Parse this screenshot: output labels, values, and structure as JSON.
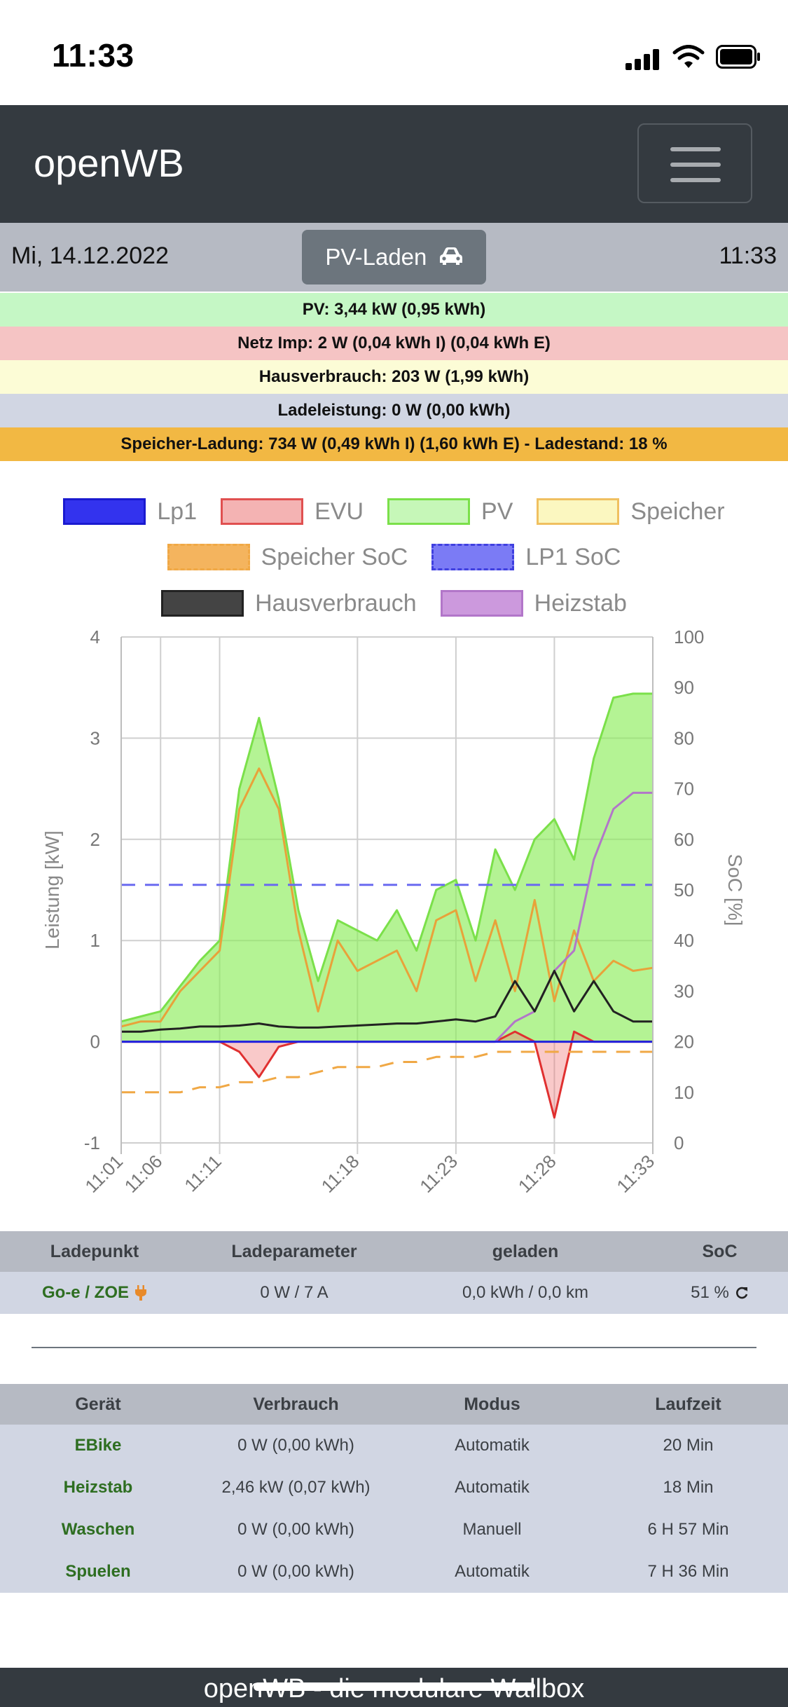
{
  "status_bar": {
    "time": "11:33"
  },
  "navbar": {
    "brand": "openWB"
  },
  "datebar": {
    "date": "Mi, 14.12.2022",
    "mode": "PV-Laden",
    "time": "11:33"
  },
  "info": {
    "pv": "PV: 3,44 kW (0,95 kWh)",
    "netz": "Netz Imp: 2 W (0,04 kWh I) (0,04 kWh E)",
    "haus": "Hausverbrauch: 203 W (1,99 kWh)",
    "lade": "Ladeleistung: 0 W (0,00 kWh)",
    "speicher": "Speicher-Ladung: 734 W (0,49 kWh I) (1,60 kWh E) - Ladestand: 18 %"
  },
  "colors": {
    "pv_row": "#c5f7c5",
    "netz_row": "#f5c4c4",
    "haus_row": "#fcfcd6",
    "lade_row": "#d1d6e3",
    "speicher_row": "#f2b843",
    "lp1": "#0000ff",
    "evu": "#e03030",
    "pv": "#7be04a",
    "speicher": "#e8a23a",
    "haus": "#222222",
    "heizstab": "#b276c9"
  },
  "legend": [
    {
      "label": "Lp1",
      "fill": "#3333ee",
      "border": "#1a1ad0",
      "dashed": false
    },
    {
      "label": "EVU",
      "fill": "#f4b3b3",
      "border": "#e05050",
      "dashed": false
    },
    {
      "label": "PV",
      "fill": "#c6f7b8",
      "border": "#7be04a",
      "dashed": false
    },
    {
      "label": "Speicher",
      "fill": "#fbf7c0",
      "border": "#f0c060",
      "dashed": false
    },
    {
      "label": "Speicher SoC",
      "fill": "#f4b45e",
      "border": "#f0a845",
      "dashed": true
    },
    {
      "label": "LP1 SoC",
      "fill": "#7b7bf5",
      "border": "#4040e0",
      "dashed": true
    },
    {
      "label": "Hausverbrauch",
      "fill": "#444444",
      "border": "#222222",
      "dashed": false
    },
    {
      "label": "Heizstab",
      "fill": "#cc99dd",
      "border": "#b276c9",
      "dashed": false
    }
  ],
  "chart_data": {
    "type": "area",
    "x": [
      "11:01",
      "11:03",
      "11:06",
      "11:08",
      "11:10",
      "11:11",
      "11:12",
      "11:13",
      "11:14",
      "11:15",
      "11:16",
      "11:17",
      "11:18",
      "11:19",
      "11:20",
      "11:21",
      "11:22",
      "11:23",
      "11:24",
      "11:25",
      "11:26",
      "11:27",
      "11:28",
      "11:29",
      "11:30",
      "11:31",
      "11:32",
      "11:33"
    ],
    "x_ticks": [
      "11:01",
      "11:06",
      "11:11",
      "11:18",
      "11:23",
      "11:28",
      "11:33"
    ],
    "ylabel": "Leistung [kW]",
    "y2label": "SoC [%]",
    "ylim": [
      -1,
      4
    ],
    "y_ticks": [
      "-1",
      "0",
      "1",
      "2",
      "3",
      "4"
    ],
    "y2lim": [
      0,
      100
    ],
    "y2_ticks": [
      "0",
      "10",
      "20",
      "30",
      "40",
      "50",
      "60",
      "70",
      "80",
      "90",
      "100"
    ],
    "grid": true,
    "legend_position": "top",
    "series": [
      {
        "name": "PV",
        "axis": "left",
        "values": [
          0.2,
          0.25,
          0.3,
          0.55,
          0.8,
          1.0,
          2.5,
          3.2,
          2.4,
          1.3,
          0.6,
          1.2,
          1.1,
          1.0,
          1.3,
          0.9,
          1.5,
          1.6,
          1.0,
          1.9,
          1.5,
          2.0,
          2.2,
          1.8,
          2.8,
          3.4,
          3.44,
          3.44
        ]
      },
      {
        "name": "Speicher",
        "axis": "left",
        "values": [
          0.15,
          0.2,
          0.2,
          0.5,
          0.7,
          0.9,
          2.3,
          2.7,
          2.3,
          1.1,
          0.3,
          1.0,
          0.7,
          0.8,
          0.9,
          0.5,
          1.2,
          1.3,
          0.6,
          1.2,
          0.5,
          1.4,
          0.4,
          1.1,
          0.6,
          0.8,
          0.7,
          0.73
        ]
      },
      {
        "name": "Hausverbrauch",
        "axis": "left",
        "values": [
          0.1,
          0.1,
          0.12,
          0.13,
          0.15,
          0.15,
          0.16,
          0.18,
          0.15,
          0.14,
          0.14,
          0.15,
          0.16,
          0.17,
          0.18,
          0.18,
          0.2,
          0.22,
          0.2,
          0.25,
          0.6,
          0.3,
          0.7,
          0.3,
          0.6,
          0.3,
          0.2,
          0.2
        ]
      },
      {
        "name": "EVU",
        "axis": "left",
        "values": [
          0,
          0,
          0,
          0,
          0,
          0,
          -0.1,
          -0.35,
          -0.05,
          0,
          0,
          0,
          0,
          0,
          0,
          0,
          0,
          0,
          0,
          0,
          0.1,
          0,
          -0.75,
          0.1,
          0,
          0,
          0,
          0
        ]
      },
      {
        "name": "Lp1",
        "axis": "left",
        "values": [
          0,
          0,
          0,
          0,
          0,
          0,
          0,
          0,
          0,
          0,
          0,
          0,
          0,
          0,
          0,
          0,
          0,
          0,
          0,
          0,
          0,
          0,
          0,
          0,
          0,
          0,
          0,
          0
        ]
      },
      {
        "name": "Heizstab",
        "axis": "left",
        "values": [
          0,
          0,
          0,
          0,
          0,
          0,
          0,
          0,
          0,
          0,
          0,
          0,
          0,
          0,
          0,
          0,
          0,
          0,
          0,
          0,
          0.2,
          0.3,
          0.7,
          0.9,
          1.8,
          2.3,
          2.46,
          2.46
        ]
      },
      {
        "name": "Speicher SoC",
        "axis": "right",
        "values": [
          10,
          10,
          10,
          10,
          11,
          11,
          12,
          12,
          13,
          13,
          14,
          15,
          15,
          15,
          16,
          16,
          17,
          17,
          17,
          18,
          18,
          18,
          18,
          18,
          18,
          18,
          18,
          18
        ]
      },
      {
        "name": "LP1 SoC",
        "axis": "right",
        "values": [
          51,
          51,
          51,
          51,
          51,
          51,
          51,
          51,
          51,
          51,
          51,
          51,
          51,
          51,
          51,
          51,
          51,
          51,
          51,
          51,
          51,
          51,
          51,
          51,
          51,
          51,
          51,
          51
        ]
      }
    ]
  },
  "lp_table": {
    "headers": [
      "Ladepunkt",
      "Ladeparameter",
      "geladen",
      "SoC"
    ],
    "rows": [
      {
        "name": "Go-e / ZOE",
        "param": "0 W / 7 A",
        "geladen": "0,0 kWh / 0,0 km",
        "soc": "51 %"
      }
    ]
  },
  "dev_table": {
    "headers": [
      "Gerät",
      "Verbrauch",
      "Modus",
      "Laufzeit"
    ],
    "rows": [
      {
        "name": "EBike",
        "verbrauch": "0 W (0,00 kWh)",
        "modus": "Automatik",
        "laufzeit": "20 Min"
      },
      {
        "name": "Heizstab",
        "verbrauch": "2,46 kW (0,07 kWh)",
        "modus": "Automatik",
        "laufzeit": "18 Min"
      },
      {
        "name": "Waschen",
        "verbrauch": "0 W (0,00 kWh)",
        "modus": "Manuell",
        "laufzeit": "6 H 57 Min"
      },
      {
        "name": "Spuelen",
        "verbrauch": "0 W (0,00 kWh)",
        "modus": "Automatik",
        "laufzeit": "7 H 36 Min"
      }
    ]
  },
  "footer": {
    "text": "openWB - die modulare Wallbox"
  }
}
